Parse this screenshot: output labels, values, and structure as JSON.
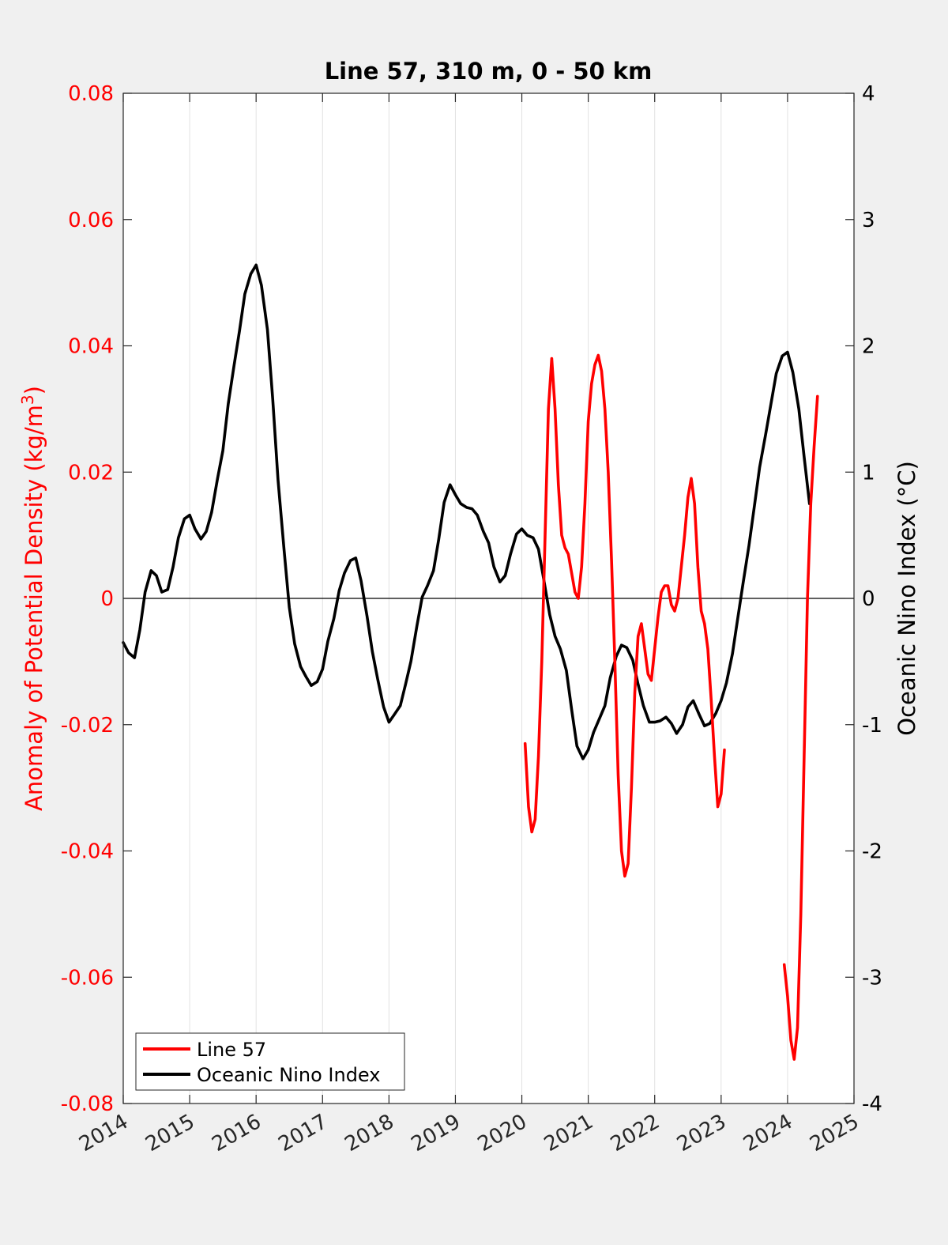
{
  "chart_data": {
    "type": "line",
    "title": "Line 57, 310 m, 0 - 50 km",
    "xlabel": "",
    "ylabel_left": "Anomaly of Potential Density (kg/m",
    "ylabel_left_sup": "3",
    "ylabel_left_close": ")",
    "ylabel_right": "Oceanic Nino Index (°C)",
    "xlim": [
      2014,
      2025
    ],
    "ylim_left": [
      -0.08,
      0.08
    ],
    "ylim_right": [
      -4,
      4
    ],
    "x_ticks": [
      "2014",
      "2015",
      "2016",
      "2017",
      "2018",
      "2019",
      "2020",
      "2021",
      "2022",
      "2023",
      "2024",
      "2025"
    ],
    "y_left_ticks": [
      "-0.08",
      "-0.06",
      "-0.04",
      "-0.02",
      "0",
      "0.02",
      "0.04",
      "0.06",
      "0.08"
    ],
    "y_right_ticks": [
      "-4",
      "-3",
      "-2",
      "-1",
      "0",
      "1",
      "2",
      "3",
      "4"
    ],
    "grid": "vertical",
    "legend_position": "bottom-left",
    "colors": {
      "line57": "#ff0000",
      "oni": "#000000",
      "left_axis": "#ff0000",
      "right_axis": "#000000"
    },
    "series": [
      {
        "name": "Line 57",
        "axis": "left",
        "segments": [
          [
            [
              2020.05,
              -0.023
            ],
            [
              2020.1,
              -0.033
            ],
            [
              2020.15,
              -0.037
            ],
            [
              2020.2,
              -0.035
            ],
            [
              2020.25,
              -0.025
            ],
            [
              2020.3,
              -0.01
            ],
            [
              2020.35,
              0.01
            ],
            [
              2020.4,
              0.03
            ],
            [
              2020.45,
              0.038
            ],
            [
              2020.5,
              0.03
            ],
            [
              2020.55,
              0.018
            ],
            [
              2020.6,
              0.01
            ],
            [
              2020.65,
              0.008
            ],
            [
              2020.7,
              0.007
            ],
            [
              2020.75,
              0.004
            ],
            [
              2020.8,
              0.001
            ],
            [
              2020.85,
              0.0
            ],
            [
              2020.9,
              0.005
            ],
            [
              2020.95,
              0.015
            ],
            [
              2021.0,
              0.028
            ],
            [
              2021.05,
              0.034
            ],
            [
              2021.1,
              0.037
            ],
            [
              2021.15,
              0.0385
            ],
            [
              2021.2,
              0.036
            ],
            [
              2021.25,
              0.03
            ],
            [
              2021.3,
              0.02
            ],
            [
              2021.35,
              0.006
            ],
            [
              2021.4,
              -0.01
            ],
            [
              2021.45,
              -0.028
            ],
            [
              2021.5,
              -0.04
            ],
            [
              2021.55,
              -0.044
            ],
            [
              2021.6,
              -0.042
            ],
            [
              2021.65,
              -0.03
            ],
            [
              2021.7,
              -0.015
            ],
            [
              2021.75,
              -0.006
            ],
            [
              2021.8,
              -0.004
            ],
            [
              2021.85,
              -0.008
            ],
            [
              2021.9,
              -0.012
            ],
            [
              2021.95,
              -0.013
            ],
            [
              2022.0,
              -0.008
            ],
            [
              2022.05,
              -0.003
            ],
            [
              2022.1,
              0.001
            ],
            [
              2022.15,
              0.002
            ],
            [
              2022.2,
              0.002
            ],
            [
              2022.25,
              -0.001
            ],
            [
              2022.3,
              -0.002
            ],
            [
              2022.35,
              0.0
            ],
            [
              2022.4,
              0.005
            ],
            [
              2022.45,
              0.01
            ],
            [
              2022.5,
              0.016
            ],
            [
              2022.55,
              0.019
            ],
            [
              2022.6,
              0.015
            ],
            [
              2022.65,
              0.005
            ],
            [
              2022.7,
              -0.002
            ],
            [
              2022.75,
              -0.004
            ],
            [
              2022.8,
              -0.008
            ],
            [
              2022.85,
              -0.016
            ],
            [
              2022.9,
              -0.025
            ],
            [
              2022.95,
              -0.033
            ],
            [
              2023.0,
              -0.031
            ],
            [
              2023.05,
              -0.024
            ]
          ],
          [
            [
              2023.95,
              -0.058
            ],
            [
              2024.0,
              -0.063
            ],
            [
              2024.05,
              -0.07
            ],
            [
              2024.1,
              -0.073
            ],
            [
              2024.15,
              -0.068
            ],
            [
              2024.2,
              -0.05
            ],
            [
              2024.25,
              -0.025
            ],
            [
              2024.3,
              0.0
            ],
            [
              2024.35,
              0.015
            ],
            [
              2024.4,
              0.024
            ],
            [
              2024.45,
              0.032
            ]
          ]
        ]
      },
      {
        "name": "Oceanic Nino Index",
        "axis": "right",
        "segments": [
          [
            [
              2014.0,
              -0.35
            ],
            [
              2014.08,
              -0.43
            ],
            [
              2014.17,
              -0.47
            ],
            [
              2014.25,
              -0.25
            ],
            [
              2014.33,
              0.05
            ],
            [
              2014.42,
              0.22
            ],
            [
              2014.5,
              0.18
            ],
            [
              2014.58,
              0.05
            ],
            [
              2014.67,
              0.07
            ],
            [
              2014.75,
              0.25
            ],
            [
              2014.83,
              0.48
            ],
            [
              2014.92,
              0.63
            ],
            [
              2015.0,
              0.66
            ],
            [
              2015.08,
              0.55
            ],
            [
              2015.17,
              0.47
            ],
            [
              2015.25,
              0.53
            ],
            [
              2015.33,
              0.68
            ],
            [
              2015.42,
              0.95
            ],
            [
              2015.5,
              1.17
            ],
            [
              2015.58,
              1.54
            ],
            [
              2015.67,
              1.85
            ],
            [
              2015.75,
              2.12
            ],
            [
              2015.83,
              2.41
            ],
            [
              2015.92,
              2.57
            ],
            [
              2016.0,
              2.64
            ],
            [
              2016.08,
              2.48
            ],
            [
              2016.17,
              2.13
            ],
            [
              2016.25,
              1.58
            ],
            [
              2016.33,
              0.94
            ],
            [
              2016.42,
              0.39
            ],
            [
              2016.5,
              -0.07
            ],
            [
              2016.58,
              -0.36
            ],
            [
              2016.67,
              -0.54
            ],
            [
              2016.75,
              -0.62
            ],
            [
              2016.83,
              -0.69
            ],
            [
              2016.92,
              -0.66
            ],
            [
              2017.0,
              -0.56
            ],
            [
              2017.08,
              -0.34
            ],
            [
              2017.17,
              -0.16
            ],
            [
              2017.25,
              0.06
            ],
            [
              2017.33,
              0.2
            ],
            [
              2017.42,
              0.3
            ],
            [
              2017.5,
              0.32
            ],
            [
              2017.58,
              0.14
            ],
            [
              2017.67,
              -0.14
            ],
            [
              2017.75,
              -0.42
            ],
            [
              2017.83,
              -0.64
            ],
            [
              2017.92,
              -0.86
            ],
            [
              2018.0,
              -0.98
            ],
            [
              2018.08,
              -0.92
            ],
            [
              2018.17,
              -0.85
            ],
            [
              2018.25,
              -0.68
            ],
            [
              2018.33,
              -0.5
            ],
            [
              2018.42,
              -0.22
            ],
            [
              2018.5,
              0.01
            ],
            [
              2018.58,
              0.1
            ],
            [
              2018.67,
              0.22
            ],
            [
              2018.75,
              0.47
            ],
            [
              2018.83,
              0.76
            ],
            [
              2018.92,
              0.9
            ],
            [
              2019.0,
              0.82
            ],
            [
              2019.08,
              0.75
            ],
            [
              2019.17,
              0.72
            ],
            [
              2019.25,
              0.71
            ],
            [
              2019.33,
              0.66
            ],
            [
              2019.42,
              0.53
            ],
            [
              2019.5,
              0.44
            ],
            [
              2019.58,
              0.25
            ],
            [
              2019.67,
              0.13
            ],
            [
              2019.75,
              0.18
            ],
            [
              2019.83,
              0.35
            ],
            [
              2019.92,
              0.51
            ],
            [
              2020.0,
              0.55
            ],
            [
              2020.08,
              0.5
            ],
            [
              2020.17,
              0.48
            ],
            [
              2020.25,
              0.39
            ],
            [
              2020.33,
              0.15
            ],
            [
              2020.42,
              -0.13
            ],
            [
              2020.5,
              -0.3
            ],
            [
              2020.58,
              -0.4
            ],
            [
              2020.67,
              -0.57
            ],
            [
              2020.75,
              -0.88
            ],
            [
              2020.83,
              -1.17
            ],
            [
              2020.92,
              -1.27
            ],
            [
              2021.0,
              -1.2
            ],
            [
              2021.08,
              -1.06
            ],
            [
              2021.17,
              -0.95
            ],
            [
              2021.25,
              -0.85
            ],
            [
              2021.33,
              -0.63
            ],
            [
              2021.42,
              -0.46
            ],
            [
              2021.5,
              -0.37
            ],
            [
              2021.58,
              -0.39
            ],
            [
              2021.67,
              -0.49
            ],
            [
              2021.75,
              -0.68
            ],
            [
              2021.83,
              -0.85
            ],
            [
              2021.92,
              -0.98
            ],
            [
              2022.0,
              -0.98
            ],
            [
              2022.08,
              -0.97
            ],
            [
              2022.17,
              -0.94
            ],
            [
              2022.25,
              -0.99
            ],
            [
              2022.33,
              -1.07
            ],
            [
              2022.42,
              -1.0
            ],
            [
              2022.5,
              -0.86
            ],
            [
              2022.58,
              -0.81
            ],
            [
              2022.67,
              -0.92
            ],
            [
              2022.75,
              -1.01
            ],
            [
              2022.83,
              -0.99
            ],
            [
              2022.92,
              -0.91
            ],
            [
              2023.0,
              -0.81
            ],
            [
              2023.08,
              -0.67
            ],
            [
              2023.17,
              -0.44
            ],
            [
              2023.25,
              -0.16
            ],
            [
              2023.33,
              0.12
            ],
            [
              2023.42,
              0.42
            ],
            [
              2023.5,
              0.73
            ],
            [
              2023.58,
              1.04
            ],
            [
              2023.67,
              1.3
            ],
            [
              2023.75,
              1.54
            ],
            [
              2023.83,
              1.78
            ],
            [
              2023.92,
              1.92
            ],
            [
              2024.0,
              1.95
            ],
            [
              2024.08,
              1.79
            ],
            [
              2024.17,
              1.5
            ],
            [
              2024.25,
              1.12
            ],
            [
              2024.33,
              0.75
            ]
          ]
        ]
      }
    ]
  }
}
